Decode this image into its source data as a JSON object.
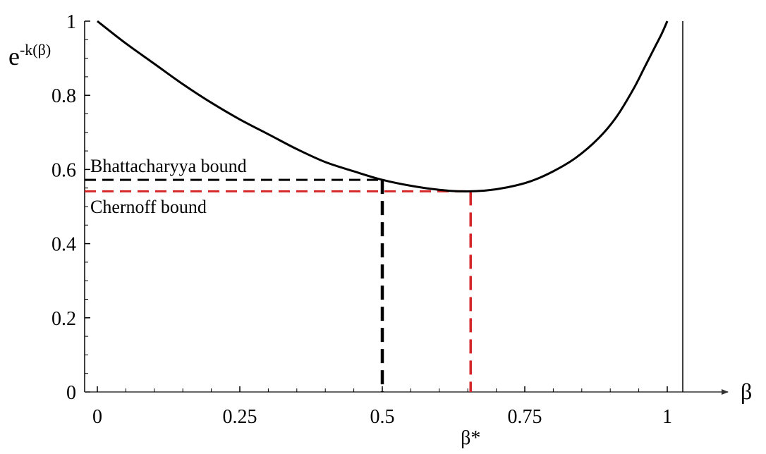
{
  "chart_data": {
    "type": "line",
    "ylabel": {
      "base": "e",
      "exponent": "-k(β)"
    },
    "xlabel": "β",
    "xlim": [
      0,
      1
    ],
    "ylim": [
      0,
      1
    ],
    "x_ticks": [
      {
        "value": 0,
        "label": "0"
      },
      {
        "value": 0.25,
        "label": "0.25"
      },
      {
        "value": 0.5,
        "label": "0.5"
      },
      {
        "value": 0.75,
        "label": "0.75"
      },
      {
        "value": 1,
        "label": "1"
      }
    ],
    "y_ticks": [
      {
        "value": 0,
        "label": "0"
      },
      {
        "value": 0.2,
        "label": "0.2"
      },
      {
        "value": 0.4,
        "label": "0.4"
      },
      {
        "value": 0.6,
        "label": "0.6"
      },
      {
        "value": 0.8,
        "label": "0.8"
      },
      {
        "value": 1,
        "label": "1"
      }
    ],
    "curve": {
      "color": "#000000",
      "x": [
        0,
        0.05,
        0.1,
        0.15,
        0.2,
        0.25,
        0.3,
        0.35,
        0.4,
        0.45,
        0.5,
        0.55,
        0.6,
        0.64,
        0.68,
        0.72,
        0.76,
        0.8,
        0.84,
        0.88,
        0.91,
        0.94,
        0.96,
        0.98,
        0.99,
        1.0
      ],
      "y": [
        1.0,
        0.94,
        0.885,
        0.83,
        0.78,
        0.735,
        0.695,
        0.655,
        0.62,
        0.595,
        0.572,
        0.556,
        0.545,
        0.541,
        0.543,
        0.552,
        0.568,
        0.595,
        0.632,
        0.685,
        0.74,
        0.815,
        0.875,
        0.935,
        0.965,
        1.0
      ]
    },
    "annotations": [
      {
        "label": "Bhattacharyya bound",
        "x": 0.5,
        "y": 0.572,
        "color": "#000000"
      },
      {
        "label": "Chernoff bound",
        "x_label": "β*",
        "x": 0.655,
        "y": 0.541,
        "color": "#d62728"
      }
    ]
  }
}
